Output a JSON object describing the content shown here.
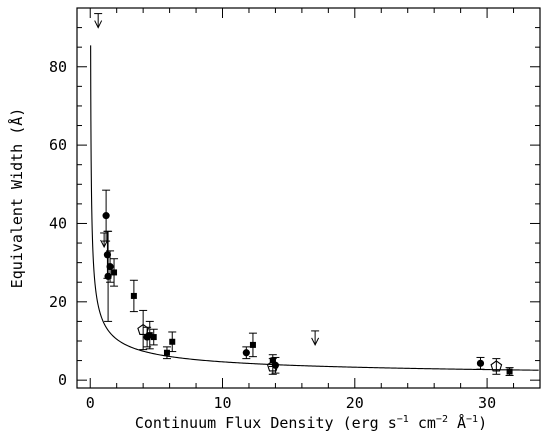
{
  "chart_data": {
    "type": "scatter",
    "xlabel": "Continuum Flux Density (erg s",
    "xlabel_parts": [
      "Continuum Flux Density (erg s",
      "−1",
      " cm",
      "−2",
      " Å",
      "−1",
      ")"
    ],
    "ylabel": "Equivalent Width (Å)",
    "xlim": [
      -1,
      34
    ],
    "ylim": [
      -2,
      95
    ],
    "xticks": [
      0,
      10,
      20,
      30
    ],
    "yticks": [
      0,
      20,
      40,
      60,
      80
    ],
    "xtick_labels": [
      "0",
      "10",
      "20",
      "30"
    ],
    "ytick_labels": [
      "0",
      "20",
      "40",
      "60",
      "80"
    ],
    "grid": false,
    "legend": "none",
    "series": [
      {
        "marker": "filled-circle",
        "points": [
          {
            "x": 1.2,
            "y": 42.0,
            "err": 6.5
          },
          {
            "x": 1.3,
            "y": 32.0,
            "err": 6.0
          },
          {
            "x": 1.35,
            "y": 26.5,
            "err": 11.5
          },
          {
            "x": 1.5,
            "y": 29.0,
            "err": 4.0
          },
          {
            "x": 4.3,
            "y": 11.0,
            "err": 2.5
          },
          {
            "x": 11.8,
            "y": 7.0,
            "err": 1.5
          },
          {
            "x": 14.0,
            "y": 3.8,
            "err": 2.0
          },
          {
            "x": 29.5,
            "y": 4.3,
            "err": 1.5
          }
        ]
      },
      {
        "marker": "filled-square",
        "points": [
          {
            "x": 1.8,
            "y": 27.5,
            "err": 3.5
          },
          {
            "x": 3.3,
            "y": 21.5,
            "err": 4.0
          },
          {
            "x": 4.5,
            "y": 11.5,
            "err": 3.5
          },
          {
            "x": 4.8,
            "y": 11.0,
            "err": 2.0
          },
          {
            "x": 5.8,
            "y": 7.0,
            "err": 1.5
          },
          {
            "x": 6.2,
            "y": 9.8,
            "err": 2.5
          },
          {
            "x": 12.3,
            "y": 9.0,
            "err": 3.0
          },
          {
            "x": 13.8,
            "y": 5.0,
            "err": 1.5
          },
          {
            "x": 31.7,
            "y": 2.2,
            "err": 1.0
          }
        ]
      },
      {
        "marker": "open-pentagon",
        "points": [
          {
            "x": 4.0,
            "y": 12.8,
            "err": 5.0
          },
          {
            "x": 13.8,
            "y": 3.5,
            "err": 2.0
          },
          {
            "x": 30.7,
            "y": 3.5,
            "err": 2.0
          }
        ]
      },
      {
        "marker": "upper-limit",
        "points": [
          {
            "x": 0.6,
            "y": 90.0
          },
          {
            "x": 1.05,
            "y": 34.0
          },
          {
            "x": 17.0,
            "y": 9.0
          }
        ]
      }
    ],
    "fit_curve": {
      "form": "y = a / sqrt(x)",
      "a": 14.8
    }
  }
}
